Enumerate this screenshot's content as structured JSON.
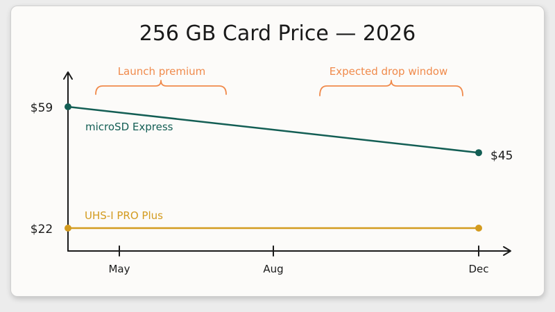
{
  "chart_data": {
    "type": "line",
    "title": "256 GB Card Price — 2026",
    "x_ticks": [
      "May",
      "Aug",
      "Dec"
    ],
    "x_range": [
      "Apr",
      "Dec"
    ],
    "y_range": [
      15,
      70
    ],
    "grid": false,
    "series": [
      {
        "name": "microSD Express",
        "color": "#135e54",
        "x": [
          "Apr",
          "Dec"
        ],
        "values": [
          59,
          45
        ],
        "labels": [
          "$59",
          "$45"
        ]
      },
      {
        "name": "UHS-I PRO Plus",
        "color": "#d39b1f",
        "x": [
          "Apr",
          "Dec"
        ],
        "values": [
          22,
          22
        ],
        "labels": [
          "$22"
        ]
      }
    ],
    "annotations": [
      {
        "text": "Launch premium",
        "from": "Apr",
        "to": "Jul",
        "color": "#f08a4b"
      },
      {
        "text": "Expected drop window",
        "from": "Aug",
        "to": "Dec",
        "color": "#f08a4b"
      }
    ]
  }
}
